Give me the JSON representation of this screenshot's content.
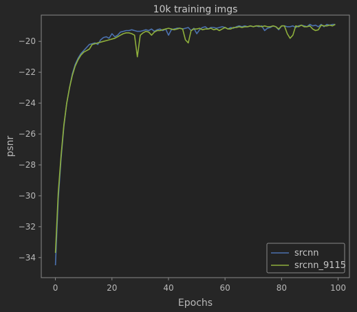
{
  "chart_data": {
    "type": "line",
    "title": "10k training imgs",
    "xlabel": "Epochs",
    "ylabel": "psnr",
    "xlim": [
      -5,
      104
    ],
    "ylim": [
      -35.3,
      -18.3
    ],
    "xticks": [
      0,
      20,
      40,
      60,
      80,
      100
    ],
    "yticks": [
      -34,
      -32,
      -30,
      -28,
      -26,
      -24,
      -22,
      -20
    ],
    "grid": false,
    "legend_position": "lower-right",
    "background": "#232323",
    "axes_edge": "#8a8a8a",
    "series": [
      {
        "name": "srcnn",
        "color": "#4c72b0",
        "x": [
          0,
          1,
          2,
          3,
          4,
          5,
          6,
          7,
          8,
          9,
          10,
          11,
          12,
          13,
          14,
          15,
          16,
          17,
          18,
          19,
          20,
          21,
          22,
          23,
          24,
          25,
          26,
          27,
          28,
          29,
          30,
          31,
          32,
          33,
          34,
          35,
          36,
          37,
          38,
          39,
          40,
          41,
          42,
          43,
          44,
          45,
          46,
          47,
          48,
          49,
          50,
          51,
          52,
          53,
          54,
          55,
          56,
          57,
          58,
          59,
          60,
          61,
          62,
          63,
          64,
          65,
          66,
          67,
          68,
          69,
          70,
          71,
          72,
          73,
          74,
          75,
          76,
          77,
          78,
          79,
          80,
          81,
          82,
          83,
          84,
          85,
          86,
          87,
          88,
          89,
          90,
          91,
          92,
          93,
          94,
          95,
          96,
          97,
          98,
          99
        ],
        "y": [
          -34.5,
          -30.2,
          -27.6,
          -25.5,
          -24.0,
          -23.0,
          -22.1,
          -21.5,
          -21.1,
          -20.8,
          -20.6,
          -20.4,
          -20.2,
          -20.15,
          -20.1,
          -20.2,
          -19.9,
          -19.75,
          -19.7,
          -19.8,
          -19.5,
          -19.7,
          -19.6,
          -19.4,
          -19.35,
          -19.3,
          -19.3,
          -19.25,
          -19.3,
          -19.35,
          -19.35,
          -19.3,
          -19.25,
          -19.3,
          -19.2,
          -19.35,
          -19.25,
          -19.2,
          -19.3,
          -19.2,
          -19.6,
          -19.25,
          -19.2,
          -19.15,
          -19.15,
          -19.2,
          -19.15,
          -19.1,
          -19.3,
          -19.15,
          -19.5,
          -19.25,
          -19.1,
          -19.05,
          -19.2,
          -19.1,
          -19.1,
          -19.15,
          -19.1,
          -19.05,
          -19.1,
          -19.2,
          -19.1,
          -19.15,
          -19.05,
          -19.0,
          -19.05,
          -19.0,
          -19.05,
          -19.0,
          -19.05,
          -19.0,
          -19.05,
          -19.0,
          -19.3,
          -19.15,
          -19.1,
          -19.0,
          -19.05,
          -19.25,
          -19.0,
          -19.0,
          -19.05,
          -19.05,
          -19.0,
          -19.1,
          -19.0,
          -18.95,
          -19.0,
          -19.05,
          -18.9,
          -19.0,
          -18.95,
          -19.05,
          -18.9,
          -19.05,
          -18.9,
          -18.95,
          -18.9,
          -18.9
        ]
      },
      {
        "name": "srcnn_9115",
        "color": "#8fb03c",
        "x": [
          0,
          1,
          2,
          3,
          4,
          5,
          6,
          7,
          8,
          9,
          10,
          11,
          12,
          13,
          14,
          15,
          16,
          17,
          18,
          19,
          20,
          21,
          22,
          23,
          24,
          25,
          26,
          27,
          28,
          29,
          30,
          31,
          32,
          33,
          34,
          35,
          36,
          37,
          38,
          39,
          40,
          41,
          42,
          43,
          44,
          45,
          46,
          47,
          48,
          49,
          50,
          51,
          52,
          53,
          54,
          55,
          56,
          57,
          58,
          59,
          60,
          61,
          62,
          63,
          64,
          65,
          66,
          67,
          68,
          69,
          70,
          71,
          72,
          73,
          74,
          75,
          76,
          77,
          78,
          79,
          80,
          81,
          82,
          83,
          84,
          85,
          86,
          87,
          88,
          89,
          90,
          91,
          92,
          93,
          94,
          95,
          96,
          97,
          98,
          99
        ],
        "y": [
          -33.7,
          -29.8,
          -27.4,
          -25.4,
          -24.0,
          -23.0,
          -22.2,
          -21.6,
          -21.2,
          -20.9,
          -20.7,
          -20.6,
          -20.5,
          -20.2,
          -20.15,
          -20.1,
          -20.05,
          -20.0,
          -19.95,
          -19.9,
          -19.85,
          -19.8,
          -19.7,
          -19.6,
          -19.5,
          -19.45,
          -19.45,
          -19.5,
          -19.6,
          -21.0,
          -19.6,
          -19.45,
          -19.35,
          -19.4,
          -19.6,
          -19.4,
          -19.3,
          -19.3,
          -19.25,
          -19.2,
          -19.15,
          -19.2,
          -19.25,
          -19.2,
          -19.15,
          -19.2,
          -19.9,
          -20.1,
          -19.3,
          -19.2,
          -19.2,
          -19.15,
          -19.25,
          -19.2,
          -19.2,
          -19.15,
          -19.25,
          -19.2,
          -19.3,
          -19.2,
          -19.1,
          -19.2,
          -19.2,
          -19.1,
          -19.1,
          -19.05,
          -19.1,
          -19.05,
          -19.05,
          -19.0,
          -19.05,
          -19.0,
          -19.0,
          -19.05,
          -19.0,
          -19.05,
          -19.05,
          -19.0,
          -19.05,
          -19.2,
          -19.0,
          -19.0,
          -19.5,
          -19.8,
          -19.6,
          -19.0,
          -19.05,
          -18.95,
          -19.05,
          -19.05,
          -19.0,
          -19.2,
          -19.3,
          -19.25,
          -18.95,
          -19.0,
          -19.0,
          -18.95,
          -19.0,
          -18.9
        ]
      }
    ]
  }
}
